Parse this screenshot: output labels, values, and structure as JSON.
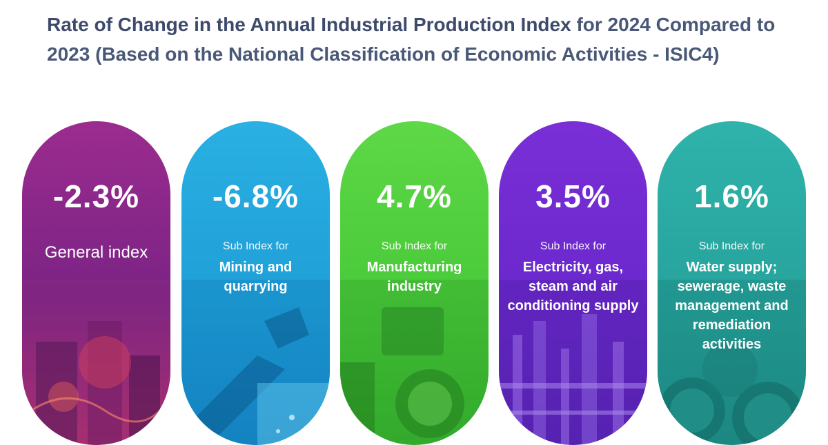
{
  "header": {
    "title_bold": "Rate of Change in the Annual Industrial Production Index",
    "title_rest": " for 2024 Compared to 2023 (Based on the National Classification of Economic Activities - ISIC4)"
  },
  "cards": [
    {
      "value": "-2.3%",
      "sub": "",
      "main": "General index",
      "color_top": "#9b2c8e",
      "color_mid": "#7a2385",
      "color_bottom": "#b8326a"
    },
    {
      "value": "-6.8%",
      "sub": "Sub Index for",
      "main": "Mining and quarrying",
      "color_top": "#2ab0e3",
      "color_mid": "#1f9fd6",
      "color_bottom": "#1586c4"
    },
    {
      "value": "4.7%",
      "sub": "Sub Index for",
      "main": "Manufacturing industry",
      "color_top": "#5ed846",
      "color_mid": "#49c93a",
      "color_bottom": "#35b02e"
    },
    {
      "value": "3.5%",
      "sub": "Sub Index for",
      "main": "Electricity, gas, steam and air conditioning supply",
      "color_top": "#7a2fd6",
      "color_mid": "#6a28cc",
      "color_bottom": "#5a24b8"
    },
    {
      "value": "1.6%",
      "sub": "Sub Index for",
      "main": "Water supply; sewerage, waste management and remediation activities",
      "color_top": "#2fb3ab",
      "color_mid": "#26a39c",
      "color_bottom": "#1e8e88"
    }
  ]
}
